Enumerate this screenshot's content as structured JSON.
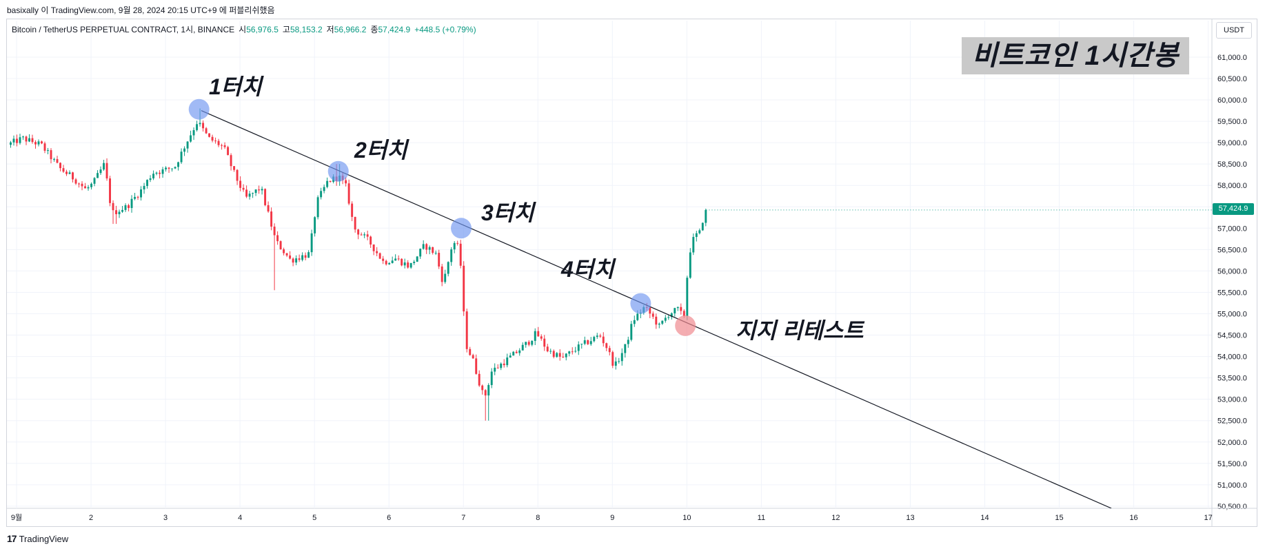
{
  "header": {
    "published": "basixally 이 TradingView.com, 9월 28, 2024 20:15 UTC+9 에 퍼블리쉬했음",
    "symbol": "Bitcoin / TetherUS PERPETUAL CONTRACT, 1시, BINANCE",
    "open_label": "시",
    "open": "56,976.5",
    "high_label": "고",
    "high": "58,153.2",
    "low_label": "저",
    "low": "56,966.2",
    "close_label": "종",
    "close": "57,424.9",
    "change": "+448.5 (+0.79%)"
  },
  "unit": "USDT",
  "title_box": "비트코인 1시간봉",
  "annotations": {
    "touch1": "1터치",
    "touch2": "2터치",
    "touch3": "3터치",
    "touch4": "4터치",
    "retest": "지지 리테스트"
  },
  "footer": {
    "logo": "17",
    "brand": "TradingView"
  },
  "colors": {
    "up": "#089981",
    "down": "#f23645",
    "touch_marker": "#6f95f0",
    "retest_marker": "#f08a90",
    "trendline": "#131722",
    "grid": "#f0f3fa"
  },
  "chart_data": {
    "type": "candlestick",
    "interval": "1시",
    "symbol": "BTCUSDT.P",
    "y_axis": {
      "range": [
        50450,
        61450
      ],
      "ticks": [
        50500,
        51000,
        51500,
        52000,
        52500,
        53000,
        53500,
        54000,
        54500,
        55000,
        55500,
        56000,
        56500,
        57000,
        57500,
        58000,
        58500,
        59000,
        59500,
        60000,
        60500,
        61000
      ],
      "tick_labels": [
        "50,500.0",
        "51,000.0",
        "51,500.0",
        "52,000.0",
        "52,500.0",
        "53,000.0",
        "53,500.0",
        "54,000.0",
        "54,500.0",
        "55,000.0",
        "55,500.0",
        "56,000.0",
        "56,500.0",
        "57,000.0",
        "57,500.0",
        "58,000.0",
        "58,500.0",
        "59,000.0",
        "59,500.0",
        "60,000.0",
        "60,500.0",
        "61,000.0"
      ],
      "last_price": 57424.9,
      "last_price_label": "57,424.9"
    },
    "x_axis": {
      "range_days": [
        0.87,
        17.05
      ],
      "ticks": [
        1,
        2,
        3,
        4,
        5,
        6,
        7,
        8,
        9,
        10,
        11,
        12,
        13,
        14,
        15,
        16,
        17
      ],
      "tick_labels": [
        "9월",
        "2",
        "3",
        "4",
        "5",
        "6",
        "7",
        "8",
        "9",
        "10",
        "11",
        "12",
        "13",
        "14",
        "15",
        "16",
        "17"
      ]
    },
    "grid": true,
    "keyframes": [
      {
        "t": 0.9,
        "p": 58950
      },
      {
        "t": 1.1,
        "p": 59100
      },
      {
        "t": 1.35,
        "p": 58950
      },
      {
        "t": 1.6,
        "p": 58400
      },
      {
        "t": 1.8,
        "p": 58150
      },
      {
        "t": 1.95,
        "p": 57900
      },
      {
        "t": 2.05,
        "p": 58050
      },
      {
        "t": 2.2,
        "p": 58500
      },
      {
        "t": 2.3,
        "p": 57350
      },
      {
        "t": 2.5,
        "p": 57500
      },
      {
        "t": 2.7,
        "p": 57900
      },
      {
        "t": 2.85,
        "p": 58300
      },
      {
        "t": 3.0,
        "p": 58350
      },
      {
        "t": 3.15,
        "p": 58450
      },
      {
        "t": 3.3,
        "p": 59000
      },
      {
        "t": 3.45,
        "p": 59500
      },
      {
        "t": 3.6,
        "p": 59100
      },
      {
        "t": 3.8,
        "p": 58900
      },
      {
        "t": 3.95,
        "p": 58250
      },
      {
        "t": 4.1,
        "p": 57700
      },
      {
        "t": 4.3,
        "p": 57950
      },
      {
        "t": 4.5,
        "p": 56700
      },
      {
        "t": 4.7,
        "p": 56250
      },
      {
        "t": 4.95,
        "p": 56400
      },
      {
        "t": 5.05,
        "p": 57600
      },
      {
        "t": 5.2,
        "p": 58100
      },
      {
        "t": 5.35,
        "p": 58200
      },
      {
        "t": 5.45,
        "p": 57950
      },
      {
        "t": 5.55,
        "p": 57000
      },
      {
        "t": 5.75,
        "p": 56700
      },
      {
        "t": 5.95,
        "p": 56200
      },
      {
        "t": 6.1,
        "p": 56300
      },
      {
        "t": 6.3,
        "p": 56100
      },
      {
        "t": 6.5,
        "p": 56600
      },
      {
        "t": 6.65,
        "p": 56400
      },
      {
        "t": 6.75,
        "p": 55700
      },
      {
        "t": 6.88,
        "p": 56700
      },
      {
        "t": 6.97,
        "p": 56500
      },
      {
        "t": 7.05,
        "p": 54300
      },
      {
        "t": 7.15,
        "p": 53900
      },
      {
        "t": 7.3,
        "p": 53000
      },
      {
        "t": 7.4,
        "p": 53650
      },
      {
        "t": 7.55,
        "p": 53850
      },
      {
        "t": 7.7,
        "p": 54050
      },
      {
        "t": 7.9,
        "p": 54350
      },
      {
        "t": 8.0,
        "p": 54550
      },
      {
        "t": 8.15,
        "p": 54150
      },
      {
        "t": 8.35,
        "p": 53950
      },
      {
        "t": 8.5,
        "p": 54150
      },
      {
        "t": 8.7,
        "p": 54350
      },
      {
        "t": 8.85,
        "p": 54500
      },
      {
        "t": 8.95,
        "p": 54200
      },
      {
        "t": 9.05,
        "p": 53750
      },
      {
        "t": 9.2,
        "p": 54250
      },
      {
        "t": 9.3,
        "p": 54850
      },
      {
        "t": 9.45,
        "p": 55150
      },
      {
        "t": 9.55,
        "p": 54950
      },
      {
        "t": 9.65,
        "p": 54700
      },
      {
        "t": 9.78,
        "p": 55000
      },
      {
        "t": 9.9,
        "p": 55100
      },
      {
        "t": 9.98,
        "p": 54900
      },
      {
        "t": 10.05,
        "p": 56400
      },
      {
        "t": 10.12,
        "p": 56800
      },
      {
        "t": 10.2,
        "p": 56900
      },
      {
        "t": 10.26,
        "p": 57425
      }
    ],
    "wick_extremes": [
      {
        "t": 2.3,
        "low": 57100
      },
      {
        "t": 3.45,
        "high": 59800
      },
      {
        "t": 4.45,
        "low": 55550
      },
      {
        "t": 5.3,
        "high": 58500
      },
      {
        "t": 7.3,
        "low": 52500
      },
      {
        "t": 10.26,
        "high": 58153.2,
        "low": 56966.2
      }
    ],
    "trendline": {
      "from": {
        "t": 3.48,
        "p": 59750
      },
      "to": {
        "t": 15.7,
        "p": 50450
      }
    },
    "touch_points": [
      {
        "label": "1터치",
        "t": 3.45,
        "p": 59780
      },
      {
        "label": "2터치",
        "t": 5.32,
        "p": 58330
      },
      {
        "label": "3터치",
        "t": 6.97,
        "p": 57000
      },
      {
        "label": "4터치",
        "t": 9.38,
        "p": 55240
      }
    ],
    "retest_point": {
      "label": "지지 리테스트",
      "t": 9.98,
      "p": 54720
    }
  }
}
